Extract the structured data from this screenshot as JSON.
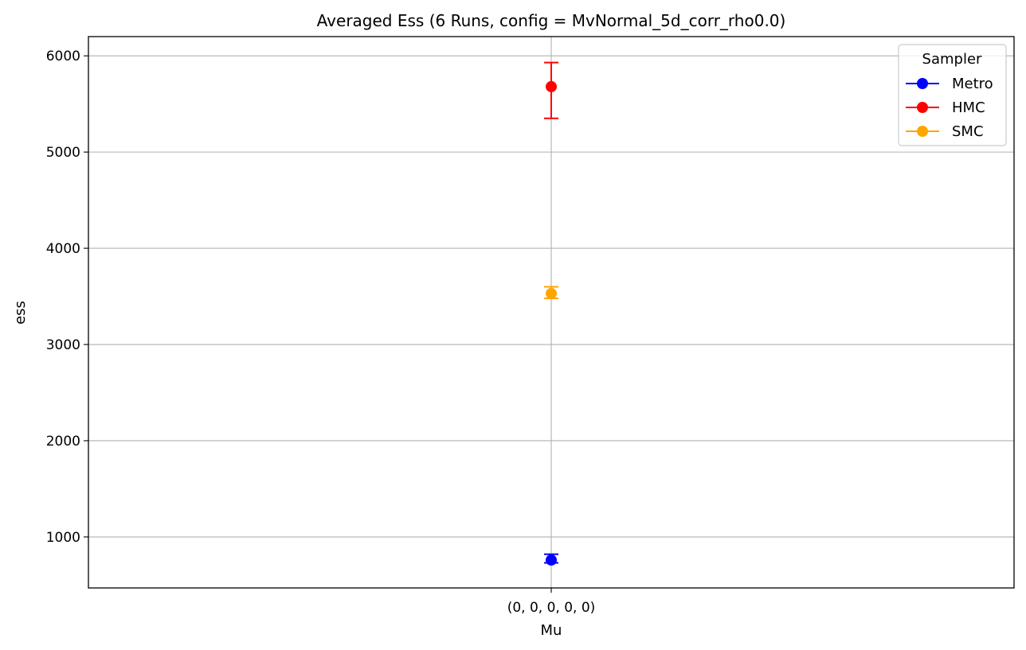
{
  "chart_data": {
    "type": "scatter",
    "title": "Averaged Ess (6 Runs, config = MvNormal_5d_corr_rho0.0)",
    "xlabel": "Mu",
    "ylabel": "ess",
    "categories": [
      "(0, 0, 0, 0, 0)"
    ],
    "ylim": [
      470,
      6200
    ],
    "yticks": [
      1000,
      2000,
      3000,
      4000,
      5000,
      6000
    ],
    "grid": true,
    "legend": {
      "title": "Sampler",
      "placement": "top-right"
    },
    "series": [
      {
        "name": "Metro",
        "color": "#0000ff",
        "values": [
          760
        ],
        "err_low": [
          730
        ],
        "err_high": [
          820
        ]
      },
      {
        "name": "HMC",
        "color": "#ff0000",
        "values": [
          5680
        ],
        "err_low": [
          5350
        ],
        "err_high": [
          5930
        ]
      },
      {
        "name": "SMC",
        "color": "#ffa500",
        "values": [
          3530
        ],
        "err_low": [
          3480
        ],
        "err_high": [
          3600
        ]
      }
    ]
  }
}
